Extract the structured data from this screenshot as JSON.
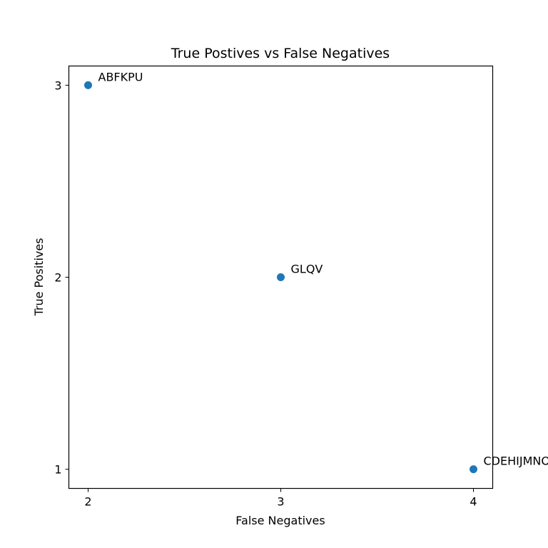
{
  "chart_data": {
    "type": "scatter",
    "title": "True Postives vs False Negatives",
    "xlabel": "False Negatives",
    "ylabel": "True Positives",
    "xlim": [
      1.9,
      4.1
    ],
    "ylim": [
      0.9,
      3.1
    ],
    "xticks": [
      2,
      3,
      4
    ],
    "yticks": [
      1,
      2,
      3
    ],
    "grid": false,
    "color": "#1f77b4",
    "points": [
      {
        "x": 2,
        "y": 3,
        "label": "ABFKPU"
      },
      {
        "x": 3,
        "y": 2,
        "label": "GLQV"
      },
      {
        "x": 4,
        "y": 1,
        "label": "CDEHIJMNO"
      }
    ]
  }
}
